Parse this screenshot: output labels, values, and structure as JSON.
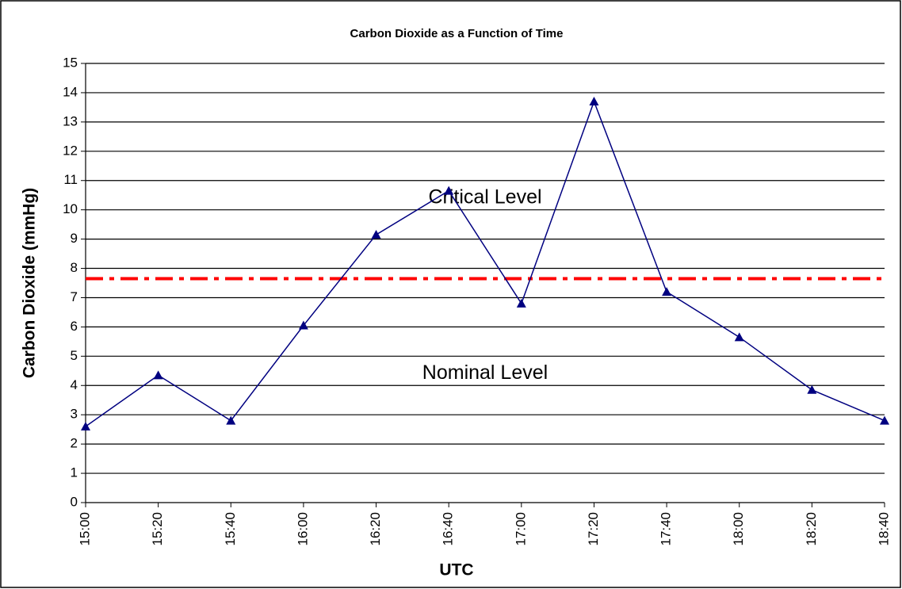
{
  "chart_data": {
    "type": "line",
    "title": "Carbon Dioxide as a Function of Time",
    "x_label": "UTC",
    "y_label": "Carbon Dioxide (mmHg)",
    "categories": [
      "15:00",
      "15:20",
      "15:40",
      "16:00",
      "16:20",
      "16:40",
      "17:00",
      "17:20",
      "17:40",
      "18:00",
      "18:20",
      "18:40"
    ],
    "series": [
      {
        "name": "Carbon Dioxide",
        "color": "#000080",
        "values": [
          2.6,
          4.35,
          2.8,
          6.05,
          9.15,
          10.65,
          6.8,
          13.7,
          7.2,
          5.65,
          3.85,
          2.8
        ]
      }
    ],
    "threshold": {
      "value": 7.65,
      "color": "#ff0000"
    },
    "annotations": [
      {
        "text": "Critical Level",
        "value": 10.4
      },
      {
        "text": "Nominal Level",
        "value": 4.4
      }
    ],
    "ylim": [
      0,
      15
    ],
    "yticks": [
      0,
      1,
      2,
      3,
      4,
      5,
      6,
      7,
      8,
      9,
      10,
      11,
      12,
      13,
      14,
      15
    ],
    "grid": true
  }
}
